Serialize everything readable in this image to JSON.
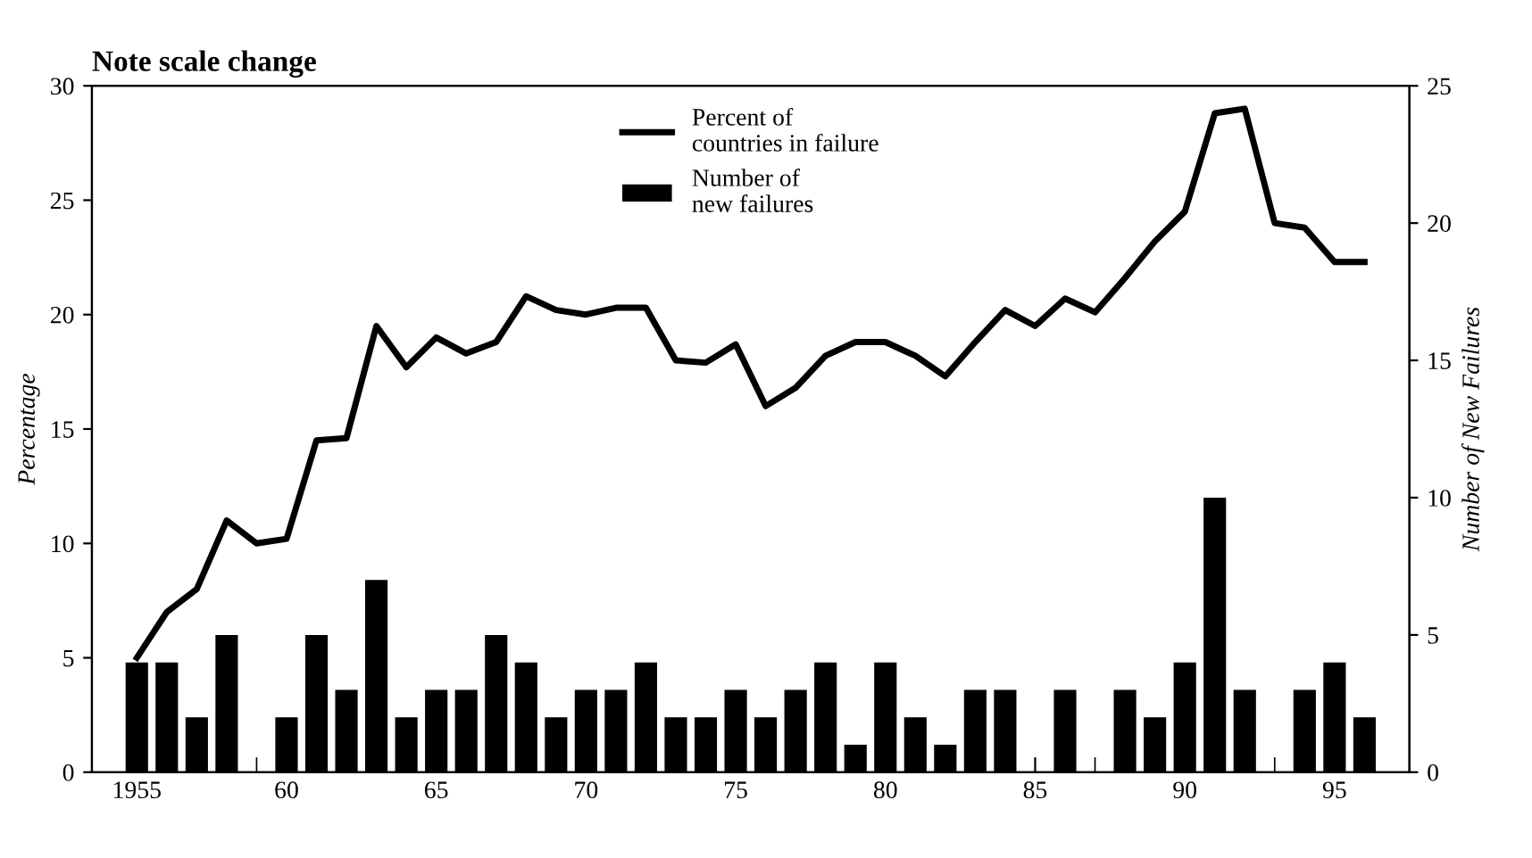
{
  "chart_data": {
    "type": "line",
    "title": "Note scale change",
    "ylabel": "Percentage",
    "y2label": "Number of New Failures",
    "x": [
      1955,
      1956,
      1957,
      1958,
      1959,
      1960,
      1961,
      1962,
      1963,
      1964,
      1965,
      1966,
      1967,
      1968,
      1969,
      1970,
      1971,
      1972,
      1973,
      1974,
      1975,
      1976,
      1977,
      1978,
      1979,
      1980,
      1981,
      1982,
      1983,
      1984,
      1985,
      1986,
      1987,
      1988,
      1989,
      1990,
      1991,
      1992,
      1993,
      1994,
      1995,
      1996
    ],
    "series": [
      {
        "name": "Percent of\ncountries in failure",
        "color": "#000000",
        "values": [
          5,
          7,
          8,
          11,
          10,
          10.2,
          14.5,
          14.6,
          19.5,
          17.7,
          19,
          18.3,
          18.8,
          20.8,
          20.2,
          20,
          20.3,
          20.3,
          18,
          17.9,
          18.7,
          16,
          16.8,
          18.2,
          18.8,
          18.8,
          18.2,
          17.3,
          18.8,
          20.2,
          19.5,
          20.7,
          20.1,
          21.6,
          23.2,
          24.5,
          28.8,
          29,
          24,
          23.8,
          22.3,
          22.3
        ]
      },
      {
        "name": "Number of\nnew failures",
        "type": "bar",
        "axis": "y2",
        "color": "#000000",
        "values": [
          4,
          4,
          2,
          5,
          0,
          2,
          5,
          3,
          7,
          2,
          3,
          3,
          5,
          4,
          2,
          3,
          3,
          4,
          2,
          2,
          3,
          2,
          3,
          4,
          1,
          4,
          2,
          1,
          3,
          3,
          0,
          3,
          0,
          3,
          2,
          4,
          10,
          3,
          0,
          3,
          4,
          2
        ]
      }
    ],
    "xlim": [
      1953.5,
      1997.5
    ],
    "xticks": [
      {
        "value": 1955,
        "label": "1955"
      },
      {
        "value": 1960,
        "label": "60"
      },
      {
        "value": 1965,
        "label": "65"
      },
      {
        "value": 1970,
        "label": "70"
      },
      {
        "value": 1975,
        "label": "75"
      },
      {
        "value": 1980,
        "label": "80"
      },
      {
        "value": 1985,
        "label": "85"
      },
      {
        "value": 1990,
        "label": "90"
      },
      {
        "value": 1995,
        "label": "95"
      }
    ],
    "ylim": [
      0,
      30
    ],
    "yticks": [
      0,
      5,
      10,
      15,
      20,
      25,
      30
    ],
    "y2lim": [
      0,
      25
    ],
    "y2ticks": [
      0,
      5,
      10,
      15,
      20,
      25
    ],
    "legend": "top",
    "grid": false
  }
}
